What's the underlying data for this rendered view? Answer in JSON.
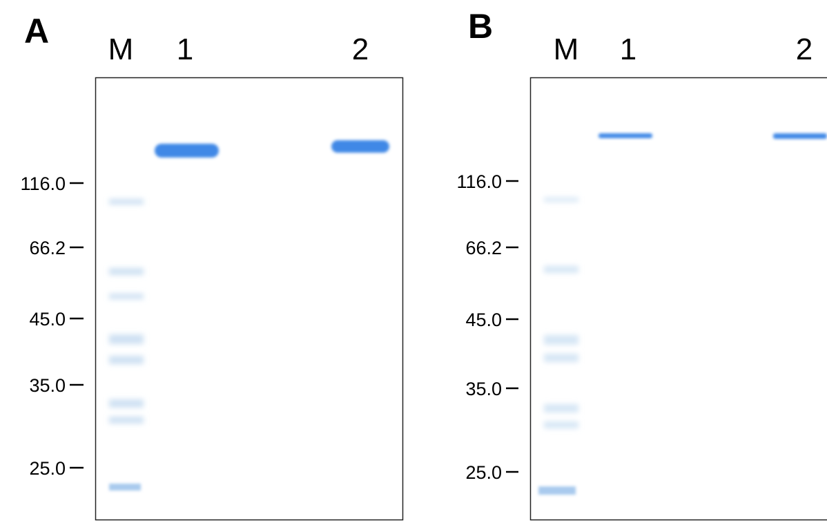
{
  "panels": [
    {
      "label": "A",
      "lanes": [
        "M",
        "1",
        "2"
      ],
      "markers": [
        "116.0",
        "66.2",
        "45.0",
        "35.0",
        "25.0"
      ]
    },
    {
      "label": "B",
      "lanes": [
        "M",
        "1",
        "2"
      ],
      "markers": [
        "116.0",
        "66.2",
        "45.0",
        "35.0",
        "25.0"
      ]
    }
  ]
}
